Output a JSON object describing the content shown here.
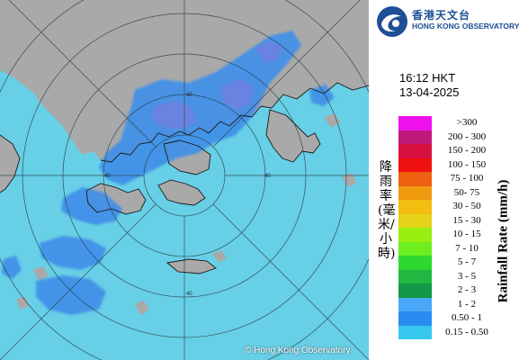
{
  "organisation": {
    "name_cn": "香港天文台",
    "name_en": "HONG KONG OBSERVATORY"
  },
  "timestamp": {
    "time": "16:12 HKT",
    "date": "13-04-2025"
  },
  "legend": {
    "title_cn": "降雨率(毫米/小時)",
    "title_en": "Rainfall Rate (mm/h)",
    "classes": [
      {
        "range": ">300",
        "color": "#ee11ee"
      },
      {
        "range": "200 - 300",
        "color": "#c0187a"
      },
      {
        "range": "150 - 200",
        "color": "#d81040"
      },
      {
        "range": "100 - 150",
        "color": "#ef1010"
      },
      {
        "range": "75 - 100",
        "color": "#ef6010"
      },
      {
        "range": "50- 75",
        "color": "#f09a10"
      },
      {
        "range": "30 - 50",
        "color": "#f2be10"
      },
      {
        "range": "15 - 30",
        "color": "#e6d21a"
      },
      {
        "range": "10 - 15",
        "color": "#9aee10"
      },
      {
        "range": "7 - 10",
        "color": "#6cee20"
      },
      {
        "range": "5 - 7",
        "color": "#2ed82e"
      },
      {
        "range": "3 - 5",
        "color": "#20b840"
      },
      {
        "range": "2 - 3",
        "color": "#139848"
      },
      {
        "range": "1 - 2",
        "color": "#4aa8f8"
      },
      {
        "range": "0.50 - 1",
        "color": "#2a8cf0"
      },
      {
        "range": "0.15 - 0.50",
        "color": "#36c8ee"
      }
    ]
  },
  "map": {
    "sea_color": "#67cfe6",
    "land_color": "#a9a9a9",
    "rain_light_color": "#3f8fe8",
    "rain_moderate_color": "#6e7fe0",
    "range_ring_labels": [
      "40",
      "40",
      "40",
      "40"
    ],
    "copyright": "© Hong Kong Observatory"
  }
}
